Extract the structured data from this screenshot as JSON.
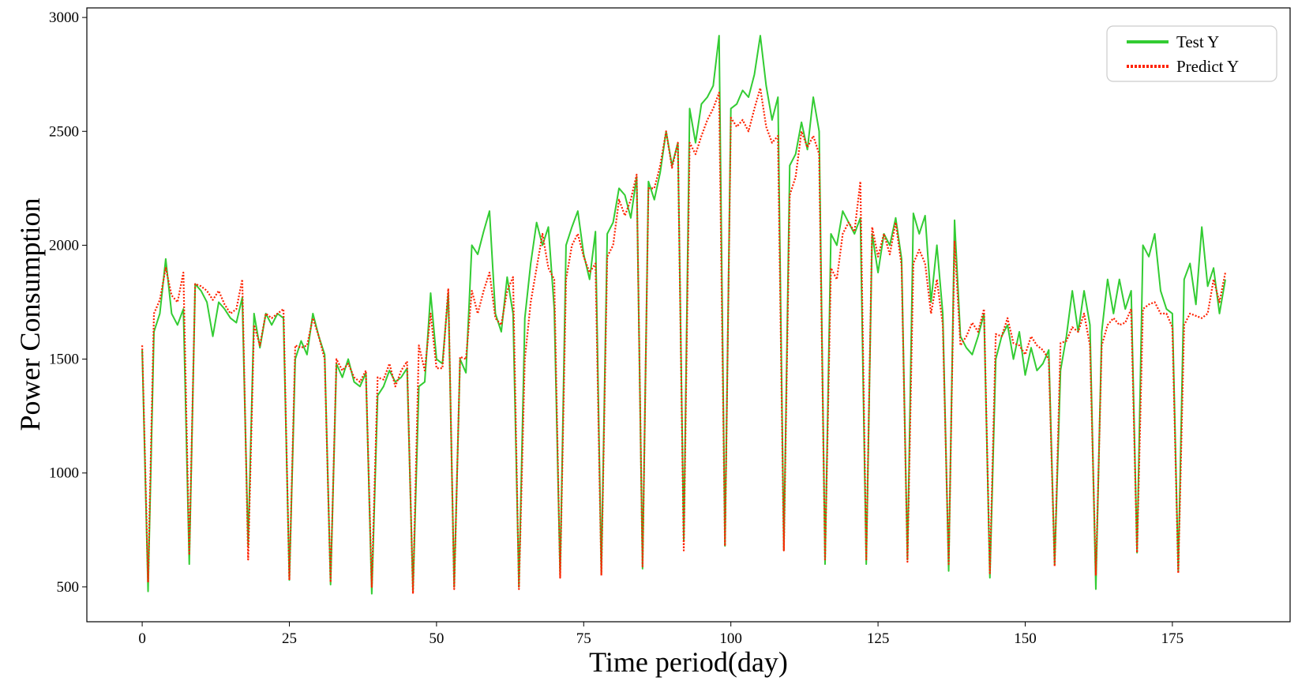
{
  "chart_data": {
    "type": "line",
    "xlabel": "Time period(day)",
    "ylabel": "Power Consumption",
    "x": [
      0,
      1,
      2,
      3,
      4,
      5,
      6,
      7,
      8,
      9,
      10,
      11,
      12,
      13,
      14,
      15,
      16,
      17,
      18,
      19,
      20,
      21,
      22,
      23,
      24,
      25,
      26,
      27,
      28,
      29,
      30,
      31,
      32,
      33,
      34,
      35,
      36,
      37,
      38,
      39,
      40,
      41,
      42,
      43,
      44,
      45,
      46,
      47,
      48,
      49,
      50,
      51,
      52,
      53,
      54,
      55,
      56,
      57,
      58,
      59,
      60,
      61,
      62,
      63,
      64,
      65,
      66,
      67,
      68,
      69,
      70,
      71,
      72,
      73,
      74,
      75,
      76,
      77,
      78,
      79,
      80,
      81,
      82,
      83,
      84,
      85,
      86,
      87,
      88,
      89,
      90,
      91,
      92,
      93,
      94,
      95,
      96,
      97,
      98,
      99,
      100,
      101,
      102,
      103,
      104,
      105,
      106,
      107,
      108,
      109,
      110,
      111,
      112,
      113,
      114,
      115,
      116,
      117,
      118,
      119,
      120,
      121,
      122,
      123,
      124,
      125,
      126,
      127,
      128,
      129,
      130,
      131,
      132,
      133,
      134,
      135,
      136,
      137,
      138,
      139,
      140,
      141,
      142,
      143,
      144,
      145,
      146,
      147,
      148,
      149,
      150,
      151,
      152,
      153,
      154,
      155,
      156,
      157,
      158,
      159,
      160,
      161,
      162,
      163,
      164,
      165,
      166,
      167,
      168,
      169,
      170,
      171,
      172,
      173,
      174,
      175,
      176,
      177,
      178,
      179,
      180,
      181,
      182,
      183,
      184
    ],
    "series": [
      {
        "name": "Test Y",
        "color": "#33cc33",
        "dash": false,
        "values": [
          1540,
          480,
          1620,
          1700,
          1940,
          1700,
          1650,
          1720,
          600,
          1830,
          1800,
          1750,
          1600,
          1750,
          1720,
          1680,
          1660,
          1770,
          680,
          1700,
          1550,
          1700,
          1650,
          1700,
          1680,
          530,
          1500,
          1580,
          1520,
          1700,
          1600,
          1520,
          510,
          1480,
          1420,
          1500,
          1400,
          1380,
          1440,
          470,
          1340,
          1380,
          1450,
          1400,
          1420,
          1460,
          480,
          1380,
          1400,
          1790,
          1500,
          1480,
          1790,
          500,
          1500,
          1440,
          2000,
          1960,
          2060,
          2150,
          1700,
          1620,
          1860,
          1700,
          500,
          1680,
          1920,
          2100,
          2000,
          2080,
          1720,
          550,
          2000,
          2080,
          2150,
          1960,
          1850,
          2060,
          560,
          2050,
          2100,
          2250,
          2220,
          2120,
          2300,
          580,
          2280,
          2200,
          2320,
          2500,
          2350,
          2450,
          700,
          2600,
          2450,
          2620,
          2650,
          2700,
          2920,
          680,
          2600,
          2620,
          2680,
          2650,
          2750,
          2920,
          2700,
          2550,
          2650,
          660,
          2350,
          2400,
          2540,
          2420,
          2650,
          2500,
          600,
          2050,
          2000,
          2150,
          2100,
          2050,
          2120,
          600,
          2050,
          1880,
          2050,
          2000,
          2120,
          1940,
          620,
          2140,
          2050,
          2130,
          1750,
          2000,
          1700,
          570,
          2110,
          1600,
          1550,
          1520,
          1600,
          1700,
          540,
          1500,
          1600,
          1650,
          1500,
          1620,
          1430,
          1550,
          1450,
          1480,
          1540,
          600,
          1450,
          1600,
          1800,
          1620,
          1800,
          1650,
          490,
          1620,
          1850,
          1700,
          1850,
          1720,
          1800,
          650,
          2000,
          1950,
          2050,
          1800,
          1720,
          1700,
          570,
          1850,
          1920,
          1740,
          2080,
          1820,
          1900,
          1700,
          1850
        ]
      },
      {
        "name": "Predict Y",
        "color": "#ff2200",
        "dash": true,
        "values": [
          1560,
          520,
          1700,
          1760,
          1900,
          1780,
          1750,
          1880,
          640,
          1830,
          1820,
          1800,
          1760,
          1800,
          1740,
          1700,
          1720,
          1850,
          620,
          1650,
          1560,
          1700,
          1680,
          1700,
          1720,
          530,
          1560,
          1550,
          1560,
          1680,
          1600,
          1500,
          520,
          1500,
          1450,
          1480,
          1420,
          1400,
          1450,
          500,
          1420,
          1410,
          1480,
          1380,
          1450,
          1490,
          470,
          1560,
          1450,
          1700,
          1460,
          1460,
          1810,
          490,
          1510,
          1500,
          1800,
          1700,
          1800,
          1880,
          1680,
          1650,
          1800,
          1860,
          490,
          1500,
          1750,
          1900,
          2050,
          1900,
          1850,
          540,
          1850,
          2000,
          2050,
          1950,
          1880,
          1920,
          550,
          1950,
          2000,
          2200,
          2130,
          2200,
          2310,
          590,
          2250,
          2250,
          2350,
          2500,
          2340,
          2450,
          660,
          2450,
          2400,
          2480,
          2550,
          2600,
          2670,
          680,
          2560,
          2520,
          2550,
          2500,
          2600,
          2690,
          2520,
          2450,
          2480,
          660,
          2220,
          2300,
          2500,
          2430,
          2480,
          2400,
          620,
          1900,
          1850,
          2050,
          2100,
          2060,
          2280,
          620,
          2080,
          1950,
          2050,
          1960,
          2100,
          1910,
          610,
          1920,
          1980,
          1920,
          1700,
          1850,
          1650,
          600,
          2020,
          1560,
          1600,
          1660,
          1620,
          1720,
          560,
          1610,
          1600,
          1680,
          1570,
          1560,
          1520,
          1600,
          1560,
          1540,
          1500,
          590,
          1570,
          1580,
          1640,
          1620,
          1700,
          1560,
          550,
          1560,
          1650,
          1680,
          1650,
          1660,
          1720,
          650,
          1720,
          1740,
          1750,
          1700,
          1700,
          1640,
          560,
          1650,
          1700,
          1690,
          1680,
          1700,
          1850,
          1750,
          1880
        ]
      }
    ],
    "xlim": [
      -9.4,
      195
    ],
    "ylim": [
      347,
      3042
    ],
    "xticks": [
      0,
      25,
      50,
      75,
      100,
      125,
      150,
      175
    ],
    "yticks": [
      500,
      1000,
      1500,
      2000,
      2500,
      3000
    ],
    "legend": "upper right"
  }
}
